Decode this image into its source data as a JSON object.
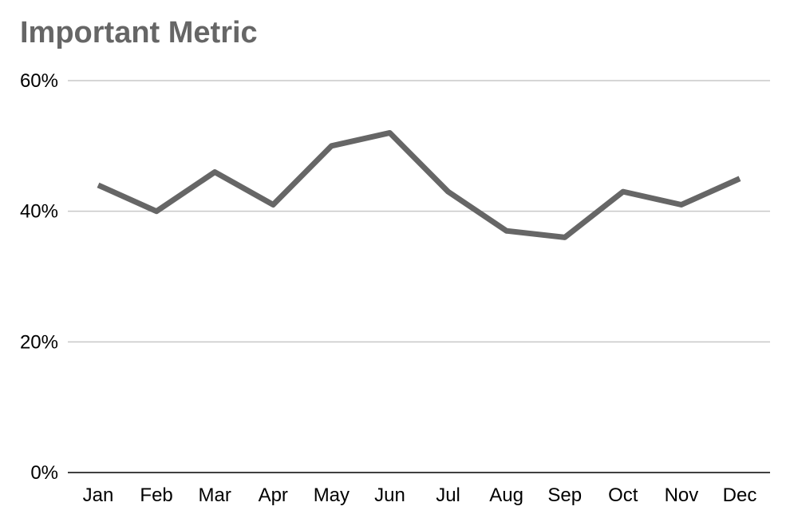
{
  "chart_data": {
    "type": "line",
    "title": "Important Metric",
    "xlabel": "",
    "ylabel": "",
    "categories": [
      "Jan",
      "Feb",
      "Mar",
      "Apr",
      "May",
      "Jun",
      "Jul",
      "Aug",
      "Sep",
      "Oct",
      "Nov",
      "Dec"
    ],
    "series": [
      {
        "name": "Important Metric",
        "values": [
          44,
          40,
          46,
          41,
          50,
          52,
          43,
          37,
          36,
          43,
          41,
          45
        ]
      }
    ],
    "ylim": [
      0,
      60
    ],
    "yticks": [
      0,
      20,
      40,
      60
    ],
    "ytick_labels": [
      "0%",
      "20%",
      "40%",
      "60%"
    ],
    "grid": true,
    "legend": "none",
    "colors": {
      "line": "#666666",
      "grid": "#c8c8c8",
      "axis": "#000000",
      "title": "#666666"
    }
  }
}
